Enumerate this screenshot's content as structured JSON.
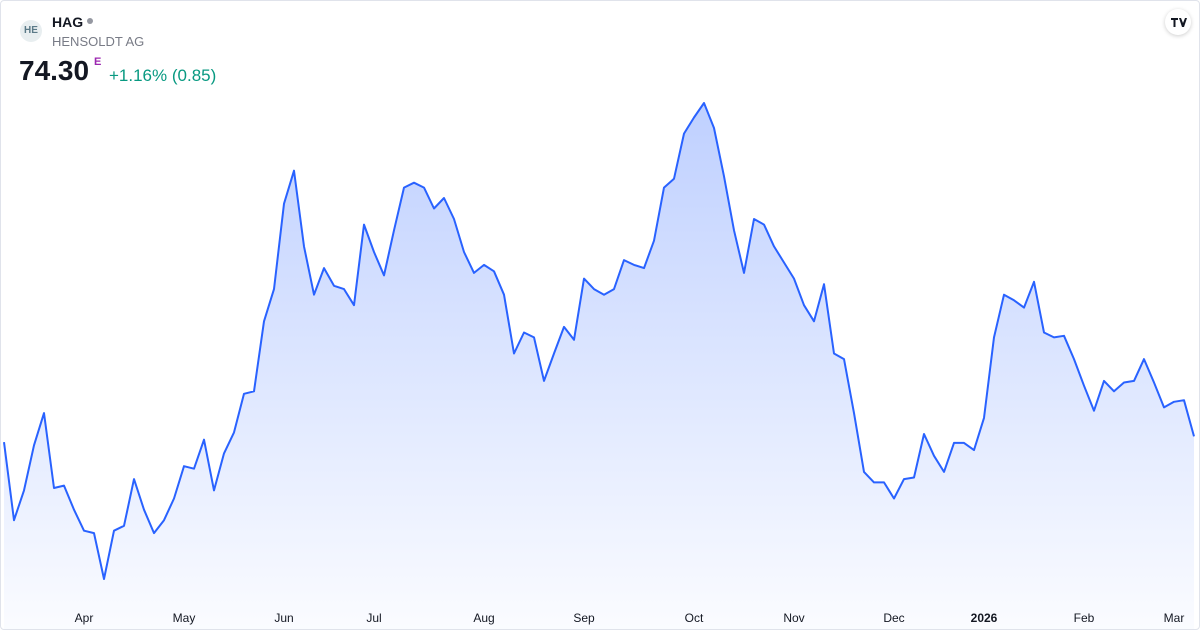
{
  "header": {
    "symbol": "HAG",
    "name": "HENSOLDT AG",
    "price": "74.30",
    "price_flag": "E",
    "change": "+1.16% (0.85)",
    "logo": "HE"
  },
  "chart_data": {
    "type": "area",
    "color": "#2962ff",
    "categories": [
      null,
      null,
      null,
      null,
      null,
      null,
      null,
      null,
      "Apr",
      null,
      null,
      null,
      null,
      null,
      null,
      null,
      null,
      null,
      "May",
      null,
      null,
      null,
      null,
      null,
      null,
      null,
      null,
      null,
      "Jun",
      null,
      null,
      null,
      null,
      null,
      null,
      null,
      null,
      "Jul",
      null,
      null,
      null,
      null,
      null,
      null,
      null,
      null,
      null,
      null,
      "Aug",
      null,
      null,
      null,
      null,
      null,
      null,
      null,
      null,
      null,
      "Sep",
      null,
      null,
      null,
      null,
      null,
      null,
      null,
      null,
      null,
      null,
      "Oct",
      null,
      null,
      null,
      null,
      null,
      null,
      null,
      null,
      null,
      "Nov",
      null,
      null,
      null,
      null,
      null,
      null,
      null,
      null,
      null,
      "Dec",
      null,
      null,
      null,
      null,
      null,
      null,
      null,
      null,
      "2026",
      null,
      null,
      null,
      null,
      null,
      null,
      null,
      null,
      null,
      "Feb",
      null,
      null,
      null,
      null,
      null,
      null,
      null,
      null,
      "Mar",
      null,
      null
    ],
    "values": [
      73.6,
      63.9,
      67.6,
      73.2,
      77.2,
      67.9,
      68.2,
      65.2,
      62.6,
      62.3,
      56.6,
      62.6,
      63.2,
      69.0,
      65.2,
      62.3,
      63.9,
      66.6,
      70.6,
      70.3,
      73.9,
      67.6,
      72.2,
      74.8,
      79.6,
      79.9,
      88.6,
      92.6,
      103.2,
      107.3,
      97.9,
      91.9,
      95.2,
      93.0,
      92.6,
      90.6,
      100.6,
      97.2,
      94.3,
      99.9,
      105.2,
      105.8,
      105.2,
      102.6,
      103.9,
      101.3,
      97.2,
      94.6,
      95.6,
      94.8,
      91.9,
      84.6,
      87.2,
      86.6,
      81.2,
      84.6,
      87.9,
      86.3,
      93.9,
      92.6,
      91.9,
      92.6,
      96.2,
      95.6,
      95.2,
      98.6,
      105.2,
      106.3,
      111.9,
      113.9,
      115.7,
      112.6,
      106.6,
      99.9,
      94.6,
      101.3,
      100.6,
      97.9,
      95.9,
      93.9,
      90.6,
      88.6,
      93.2,
      84.6,
      83.9,
      77.2,
      69.9,
      68.6,
      68.6,
      66.6,
      69.0,
      69.2,
      74.6,
      71.9,
      69.9,
      73.5,
      73.5,
      72.6,
      76.6,
      86.6,
      91.9,
      91.2,
      90.3,
      93.5,
      87.2,
      86.6,
      86.8,
      83.9,
      80.6,
      77.5,
      81.2,
      79.9,
      81.0,
      81.2,
      83.9,
      81.0,
      77.9,
      78.6,
      78.8,
      74.3
    ]
  }
}
